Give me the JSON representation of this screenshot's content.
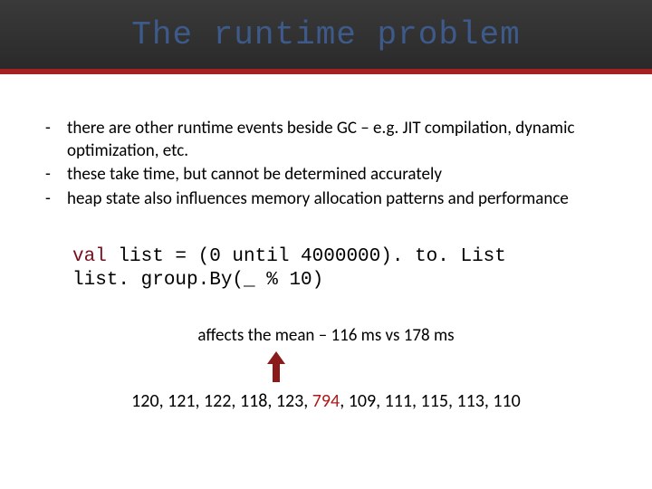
{
  "title": "The runtime problem",
  "bullets": [
    "there are other runtime events beside GC – e.g. JIT compilation, dynamic optimization, etc.",
    "these take time, but cannot be determined accurately",
    "heap state also influences memory allocation patterns and performance"
  ],
  "code": {
    "keyword": "val",
    "line1_rest": " list = (0 until 4000000). to. List",
    "line2": "list. group.By(_ % 10)"
  },
  "caption": "affects the mean – 116 ms vs 178 ms",
  "numbers": [
    "120",
    "121",
    "122",
    "118",
    "123",
    "794",
    "109",
    "111",
    "115",
    "113",
    "110"
  ],
  "highlight_index": 5,
  "colors": {
    "title_color": "#3d5a8a",
    "header_border": "#a52020",
    "code_keyword": "#7a0e1e",
    "highlight": "#b01818",
    "arrow_fill": "#8b1a1a"
  }
}
